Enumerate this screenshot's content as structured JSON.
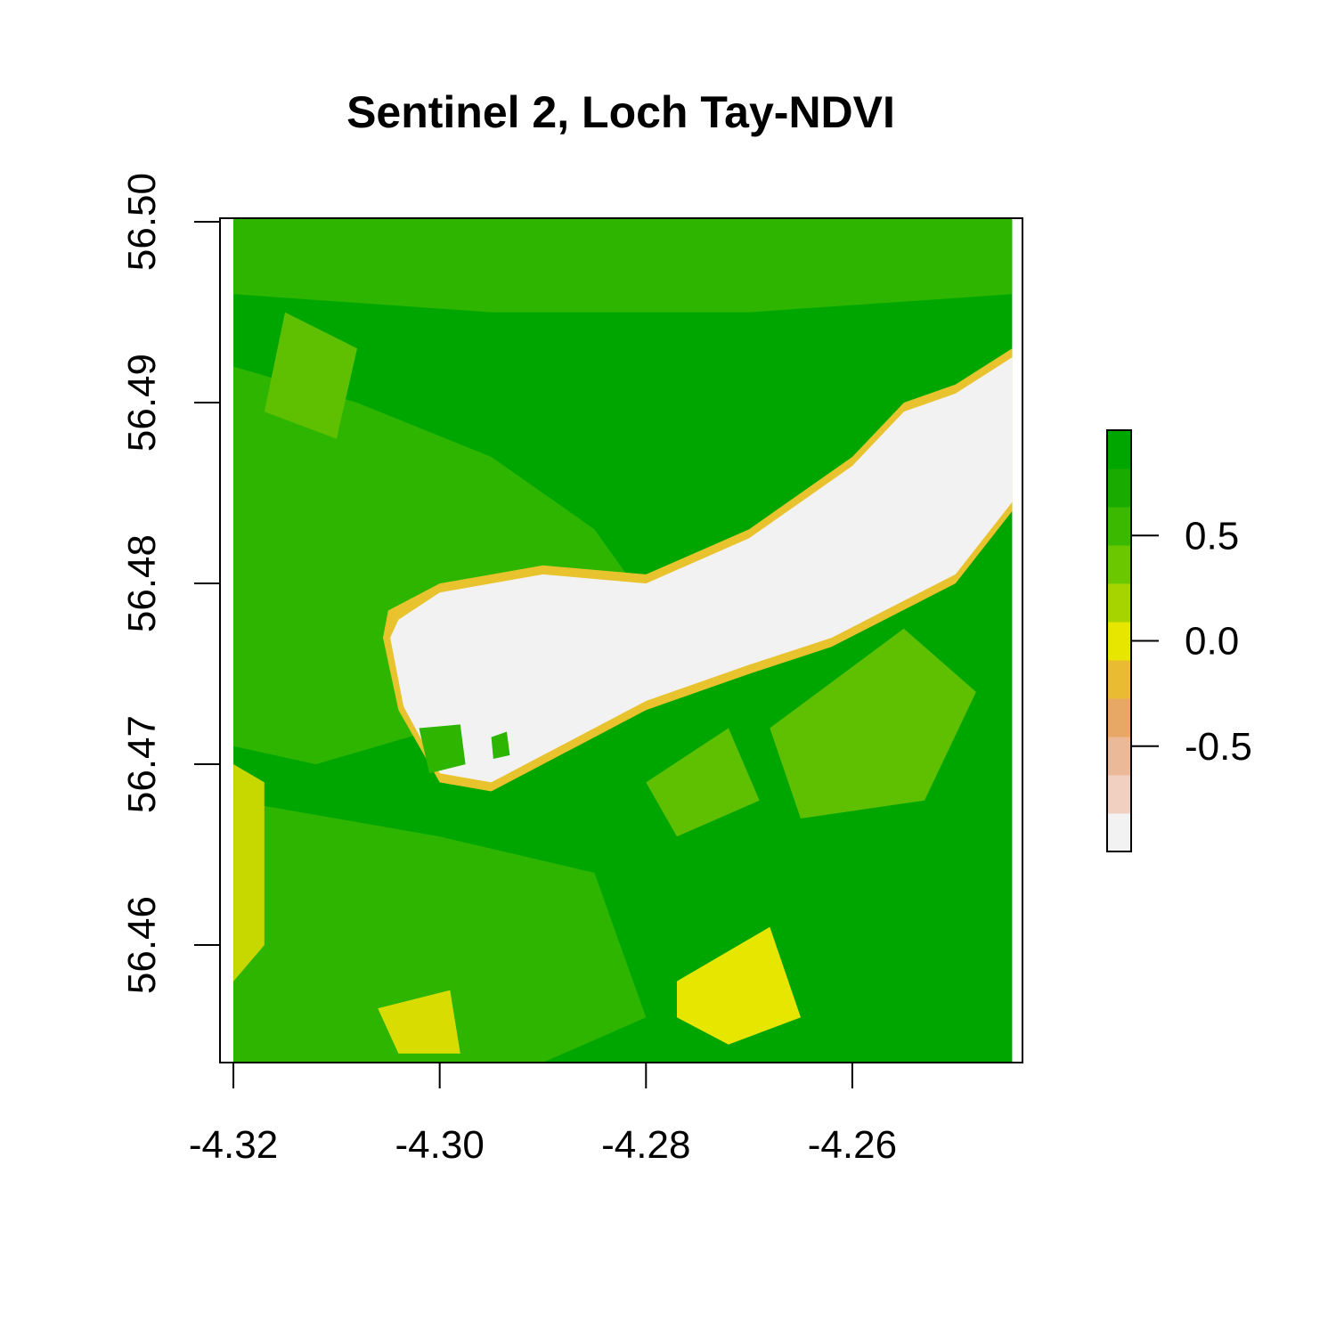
{
  "title": "Sentinel 2, Loch Tay-NDVI",
  "map": {
    "x_range": [
      -4.3213,
      -4.2435
    ],
    "y_range": [
      56.4535,
      56.5002
    ],
    "x_ticks": [
      -4.32,
      -4.3,
      -4.28,
      -4.26
    ],
    "x_tick_labels": [
      "-4.32",
      "-4.30",
      "-4.28",
      "-4.26"
    ],
    "y_ticks": [
      56.46,
      56.47,
      56.48,
      56.49,
      56.5
    ],
    "y_tick_labels": [
      "56.46",
      "56.47",
      "56.48",
      "56.49",
      "56.50"
    ],
    "raster_x_extent": [
      -4.32,
      -4.2445
    ],
    "background_color": "#00a600",
    "features": [
      {
        "name": "lighter-vegetation",
        "color": "#2db500",
        "points": [
          [
            -4.32,
            56.492
          ],
          [
            -4.308,
            56.49
          ],
          [
            -4.295,
            56.487
          ],
          [
            -4.285,
            56.483
          ],
          [
            -4.28,
            56.479
          ],
          [
            -4.288,
            56.475
          ],
          [
            -4.3,
            56.472
          ],
          [
            -4.312,
            56.47
          ],
          [
            -4.32,
            56.471
          ]
        ]
      },
      {
        "name": "upper-lighter-band",
        "color": "#2db500",
        "points": [
          [
            -4.32,
            56.5002
          ],
          [
            -4.2445,
            56.5002
          ],
          [
            -4.2445,
            56.496
          ],
          [
            -4.27,
            56.495
          ],
          [
            -4.295,
            56.495
          ],
          [
            -4.32,
            56.496
          ]
        ]
      },
      {
        "name": "south-lighter-area",
        "color": "#2db500",
        "points": [
          [
            -4.32,
            56.468
          ],
          [
            -4.3,
            56.466
          ],
          [
            -4.285,
            56.464
          ],
          [
            -4.28,
            56.456
          ],
          [
            -4.29,
            56.4535
          ],
          [
            -4.32,
            56.4535
          ]
        ]
      },
      {
        "name": "yellow-green-patch-north",
        "color": "#5ec000",
        "points": [
          [
            -4.315,
            56.495
          ],
          [
            -4.308,
            56.493
          ],
          [
            -4.31,
            56.488
          ],
          [
            -4.317,
            56.4895
          ]
        ]
      },
      {
        "name": "yellow-green-patch-east",
        "color": "#5ec000",
        "points": [
          [
            -4.268,
            56.472
          ],
          [
            -4.255,
            56.4775
          ],
          [
            -4.248,
            56.474
          ],
          [
            -4.253,
            56.468
          ],
          [
            -4.265,
            56.467
          ]
        ]
      },
      {
        "name": "yellow-green-patch-south",
        "color": "#5ec000",
        "points": [
          [
            -4.28,
            56.469
          ],
          [
            -4.272,
            56.472
          ],
          [
            -4.269,
            56.468
          ],
          [
            -4.277,
            56.466
          ]
        ]
      },
      {
        "name": "yellow-patch-south-east",
        "color": "#e6e600",
        "points": [
          [
            -4.277,
            56.458
          ],
          [
            -4.268,
            56.461
          ],
          [
            -4.265,
            56.456
          ],
          [
            -4.272,
            56.4545
          ],
          [
            -4.277,
            56.456
          ]
        ]
      },
      {
        "name": "yellow-patch-south-west",
        "color": "#d9dc00",
        "points": [
          [
            -4.306,
            56.4565
          ],
          [
            -4.299,
            56.4575
          ],
          [
            -4.298,
            56.454
          ],
          [
            -4.304,
            56.454
          ]
        ]
      },
      {
        "name": "yellow-strip-west-edge",
        "color": "#c7d800",
        "points": [
          [
            -4.32,
            56.47
          ],
          [
            -4.317,
            56.469
          ],
          [
            -4.317,
            56.46
          ],
          [
            -4.32,
            56.458
          ]
        ]
      },
      {
        "name": "lake-shore",
        "color": "#e8c32e",
        "points": [
          [
            -4.305,
            56.4785
          ],
          [
            -4.3,
            56.48
          ],
          [
            -4.29,
            56.481
          ],
          [
            -4.28,
            56.4805
          ],
          [
            -4.27,
            56.483
          ],
          [
            -4.26,
            56.487
          ],
          [
            -4.255,
            56.49
          ],
          [
            -4.25,
            56.491
          ],
          [
            -4.2445,
            56.493
          ],
          [
            -4.2445,
            56.484
          ],
          [
            -4.25,
            56.48
          ],
          [
            -4.262,
            56.4765
          ],
          [
            -4.27,
            56.475
          ],
          [
            -4.28,
            56.473
          ],
          [
            -4.29,
            56.47
          ],
          [
            -4.295,
            56.4685
          ],
          [
            -4.3,
            56.469
          ],
          [
            -4.304,
            56.473
          ],
          [
            -4.3055,
            56.477
          ]
        ]
      },
      {
        "name": "loch-tay-water",
        "color": "#f2f2f2",
        "points": [
          [
            -4.304,
            56.478
          ],
          [
            -4.3,
            56.4795
          ],
          [
            -4.29,
            56.4805
          ],
          [
            -4.28,
            56.48
          ],
          [
            -4.27,
            56.4825
          ],
          [
            -4.26,
            56.4865
          ],
          [
            -4.255,
            56.4895
          ],
          [
            -4.25,
            56.4905
          ],
          [
            -4.2445,
            56.4925
          ],
          [
            -4.2445,
            56.4845
          ],
          [
            -4.25,
            56.4805
          ],
          [
            -4.262,
            56.477
          ],
          [
            -4.27,
            56.4755
          ],
          [
            -4.28,
            56.4735
          ],
          [
            -4.29,
            56.4705
          ],
          [
            -4.295,
            56.469
          ],
          [
            -4.3,
            56.4695
          ],
          [
            -4.3035,
            56.4732
          ],
          [
            -4.3048,
            56.477
          ]
        ]
      },
      {
        "name": "island-large",
        "color": "#2db500",
        "points": [
          [
            -4.302,
            56.472
          ],
          [
            -4.298,
            56.4722
          ],
          [
            -4.2975,
            56.47
          ],
          [
            -4.301,
            56.4695
          ]
        ]
      },
      {
        "name": "island-small",
        "color": "#2db500",
        "points": [
          [
            -4.295,
            56.4715
          ],
          [
            -4.2935,
            56.4718
          ],
          [
            -4.2932,
            56.4705
          ],
          [
            -4.2948,
            56.4703
          ]
        ]
      }
    ]
  },
  "legend": {
    "colors": [
      "#f2f2f2",
      "#f1d0c2",
      "#ebb898",
      "#e8a865",
      "#e8bb33",
      "#e6e600",
      "#a5d400",
      "#6bc800",
      "#3bb900",
      "#1aab00",
      "#00a600"
    ],
    "range": [
      -1.0,
      1.0
    ],
    "ticks": [
      -0.5,
      0.0,
      0.5
    ],
    "tick_labels": [
      "-0.5",
      "0.0",
      "0.5"
    ]
  }
}
